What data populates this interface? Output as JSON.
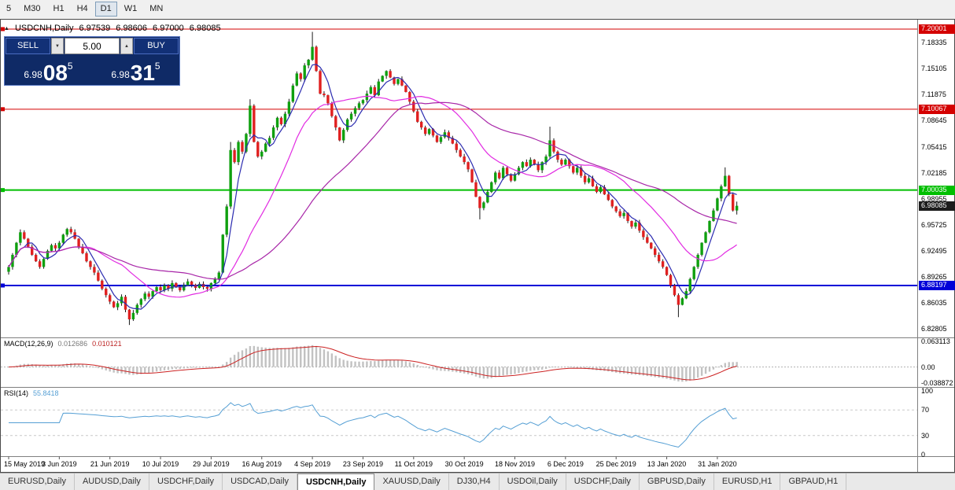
{
  "toolbar": {
    "timeframes": [
      {
        "label": "5",
        "active": false
      },
      {
        "label": "M30",
        "active": false
      },
      {
        "label": "H1",
        "active": false
      },
      {
        "label": "H4",
        "active": false
      },
      {
        "label": "D1",
        "active": true
      },
      {
        "label": "W1",
        "active": false
      },
      {
        "label": "MN",
        "active": false
      }
    ]
  },
  "chart": {
    "info_line": {
      "marker": "▲",
      "symbol": "USDCNH,Daily",
      "open": "6.97539",
      "high": "6.98606",
      "low": "6.97000",
      "close": "6.98085"
    },
    "trade_panel": {
      "sell_label": "SELL",
      "buy_label": "BUY",
      "volume": "5.00",
      "bid_prefix": "6.98",
      "bid_big": "08",
      "bid_sup": "5",
      "ask_prefix": "6.98",
      "ask_big": "31",
      "ask_sup": "5"
    },
    "current_price": {
      "label": "6.98085",
      "value": 6.98085,
      "tag_color": "#1c1c1c"
    }
  },
  "macd": {
    "label": "MACD(12,26,9)",
    "value1": "0.012686",
    "value2": "0.010121",
    "scale_labels": [
      "0.063113",
      "0.00",
      "-0.038872"
    ],
    "scale_values": [
      0.063113,
      0,
      -0.038872
    ]
  },
  "rsi": {
    "label": "RSI(14)",
    "value": "55.8418",
    "scale_labels": [
      "100",
      "70",
      "30",
      "0"
    ],
    "scale_values": [
      100,
      70,
      30,
      0
    ]
  },
  "tabs": [
    {
      "label": "EURUSD,Daily",
      "active": false
    },
    {
      "label": "AUDUSD,Daily",
      "active": false
    },
    {
      "label": "USDCHF,Daily",
      "active": false
    },
    {
      "label": "USDCAD,Daily",
      "active": false
    },
    {
      "label": "USDCNH,Daily",
      "active": true
    },
    {
      "label": "XAUUSD,Daily",
      "active": false
    },
    {
      "label": "DJ30,H4",
      "active": false
    },
    {
      "label": "USDOil,Daily",
      "active": false
    },
    {
      "label": "USDCHF,Daily",
      "active": false
    },
    {
      "label": "GBPUSD,Daily",
      "active": false
    },
    {
      "label": "EURUSD,H1",
      "active": false
    },
    {
      "label": "GBPAUD,H1",
      "active": false
    }
  ],
  "chart_data": {
    "type": "candlestick",
    "symbol": "USDCNH",
    "timeframe": "Daily",
    "today_ohlc": {
      "open": 6.97539,
      "high": 6.98606,
      "low": 6.97,
      "close": 6.98085
    },
    "bid": 6.98085,
    "ask": 6.98315,
    "y_ticks": [
      "7.18335",
      "7.15105",
      "7.11875",
      "7.08645",
      "7.05415",
      "7.02185",
      "6.98955",
      "6.95725",
      "6.92495",
      "6.89265",
      "6.86035",
      "6.82805"
    ],
    "x_labels": [
      {
        "i": 0,
        "t": "15 May 2019"
      },
      {
        "i": 13,
        "t": "3 Jun 2019"
      },
      {
        "i": 26,
        "t": "21 Jun 2019"
      },
      {
        "i": 39,
        "t": "10 Jul 2019"
      },
      {
        "i": 52,
        "t": "29 Jul 2019"
      },
      {
        "i": 65,
        "t": "16 Aug 2019"
      },
      {
        "i": 78,
        "t": "4 Sep 2019"
      },
      {
        "i": 91,
        "t": "23 Sep 2019"
      },
      {
        "i": 104,
        "t": "11 Oct 2019"
      },
      {
        "i": 117,
        "t": "30 Oct 2019"
      },
      {
        "i": 130,
        "t": "18 Nov 2019"
      },
      {
        "i": 143,
        "t": "6 Dec 2019"
      },
      {
        "i": 156,
        "t": "25 Dec 2019"
      },
      {
        "i": 169,
        "t": "13 Jan 2020"
      },
      {
        "i": 182,
        "t": "31 Jan 2020"
      }
    ],
    "horizontal_lines": [
      {
        "price": 7.20001,
        "label": "7.20001",
        "color": "#d40000",
        "width": 1
      },
      {
        "price": 7.10067,
        "label": "7.10067",
        "color": "#d40000",
        "width": 1
      },
      {
        "price": 7.00035,
        "label": "7.00035",
        "color": "#00bf00",
        "width": 2
      },
      {
        "price": 6.88197,
        "label": "6.88197",
        "color": "#0000d8",
        "width": 2
      }
    ],
    "closes": [
      6.905,
      6.92,
      6.935,
      6.948,
      6.94,
      6.93,
      6.92,
      6.912,
      6.905,
      6.915,
      6.925,
      6.932,
      6.928,
      6.935,
      6.945,
      6.952,
      6.948,
      6.94,
      6.93,
      6.922,
      6.912,
      6.905,
      6.898,
      6.888,
      6.878,
      6.87,
      6.862,
      6.855,
      6.86,
      6.868,
      6.852,
      6.84,
      6.848,
      6.858,
      6.865,
      6.872,
      6.868,
      6.875,
      6.88,
      6.876,
      6.882,
      6.878,
      6.885,
      6.88,
      6.876,
      6.882,
      6.887,
      6.883,
      6.879,
      6.884,
      6.88,
      6.878,
      6.885,
      6.89,
      6.898,
      6.945,
      6.98,
      7.05,
      7.035,
      7.06,
      7.048,
      7.07,
      7.105,
      7.06,
      7.042,
      7.048,
      7.058,
      7.065,
      7.078,
      7.09,
      7.082,
      7.095,
      7.11,
      7.13,
      7.145,
      7.138,
      7.155,
      7.162,
      7.178,
      7.148,
      7.12,
      7.118,
      7.108,
      7.092,
      7.078,
      7.062,
      7.075,
      7.088,
      7.095,
      7.102,
      7.108,
      7.112,
      7.12,
      7.128,
      7.118,
      7.135,
      7.142,
      7.148,
      7.14,
      7.132,
      7.138,
      7.13,
      7.122,
      7.11,
      7.098,
      7.085,
      7.078,
      7.07,
      7.076,
      7.068,
      7.06,
      7.066,
      7.072,
      7.065,
      7.058,
      7.05,
      7.042,
      7.035,
      7.026,
      7.01,
      6.992,
      6.978,
      6.985,
      6.998,
      7.01,
      7.022,
      7.015,
      7.028,
      7.02,
      7.012,
      7.02,
      7.028,
      7.035,
      7.03,
      7.038,
      7.032,
      7.025,
      7.035,
      7.042,
      7.062,
      7.048,
      7.038,
      7.032,
      7.038,
      7.03,
      7.022,
      7.028,
      7.018,
      7.01,
      7.015,
      7.005,
      6.998,
      7.004,
      6.995,
      6.988,
      6.98,
      6.974,
      6.968,
      6.972,
      6.962,
      6.955,
      6.96,
      6.95,
      6.942,
      6.935,
      6.928,
      6.92,
      6.912,
      6.905,
      6.895,
      6.882,
      6.87,
      6.858,
      6.866,
      6.875,
      6.89,
      6.905,
      6.92,
      6.935,
      6.948,
      6.962,
      6.975,
      6.99,
      7.005,
      7.018,
      6.995,
      6.975,
      6.98085
    ],
    "wick_overrides": {
      "31": {
        "low": 6.833
      },
      "57": {
        "high": 7.06
      },
      "62": {
        "high": 7.113
      },
      "78": {
        "high": 7.1966
      },
      "121": {
        "low": 6.964
      },
      "139": {
        "high": 7.079
      },
      "172": {
        "low": 6.8427
      },
      "184": {
        "high": 7.0285
      },
      "187": {
        "high": 6.98606,
        "low": 6.97
      }
    },
    "indicators": {
      "ma": [
        {
          "period": 5,
          "color": "#2b2bb0"
        },
        {
          "period": 20,
          "color": "#e22ce2"
        },
        {
          "period": 45,
          "color": "#a826a8"
        }
      ],
      "macd": {
        "fast": 12,
        "slow": 26,
        "signal": 9,
        "current": 0.012686,
        "current_signal": 0.010121
      },
      "rsi": {
        "period": 14,
        "current": 55.8418,
        "levels": [
          70,
          30
        ]
      }
    },
    "candle_colors": {
      "up": "#0fa00f",
      "down": "#e02020",
      "wick": "#1a1a1a"
    }
  }
}
